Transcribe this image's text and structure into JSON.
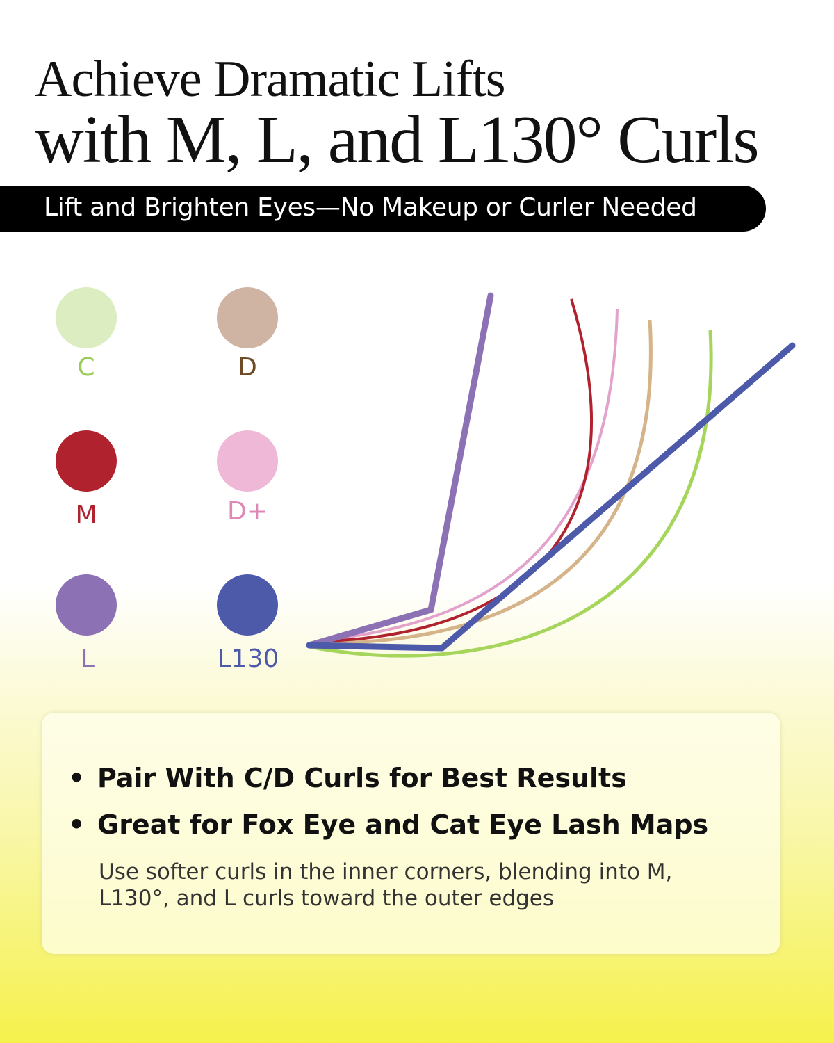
{
  "title": {
    "line1": "Achieve Dramatic Lifts",
    "line2": "with M, L, and L130° Curls"
  },
  "banner": "Lift and Brighten Eyes—No Makeup or Curler Needed",
  "legend": [
    {
      "label": "C",
      "dot_color": "#dcedc2",
      "text_color": "#9acb58",
      "curve_color": "#a5d55a"
    },
    {
      "label": "D",
      "dot_color": "#cfb3a3",
      "text_color": "#6e4a25",
      "curve_color": "#d6b48a"
    },
    {
      "label": "M",
      "dot_color": "#b0222e",
      "text_color": "#b0222e",
      "curve_color": "#b0222e"
    },
    {
      "label": "D+",
      "dot_color": "#efb8d6",
      "text_color": "#de88b8",
      "curve_color": "#e2a2cc"
    },
    {
      "label": "L",
      "dot_color": "#8c72b5",
      "text_color": "#8c72b5",
      "curve_color": "#8c72b5"
    },
    {
      "label": "L130",
      "dot_color": "#4d5aaa",
      "text_color": "#4d5aaa",
      "curve_color": "#4d5aaa"
    }
  ],
  "card": {
    "bullets": [
      "Pair With C/D Curls for Best Results",
      "Great for Fox Eye and Cat Eye Lash Maps"
    ],
    "bullet_symbol": "•",
    "note": "Use softer curls in the inner corners, blending into M, L130°, and L curls toward the outer edges"
  }
}
